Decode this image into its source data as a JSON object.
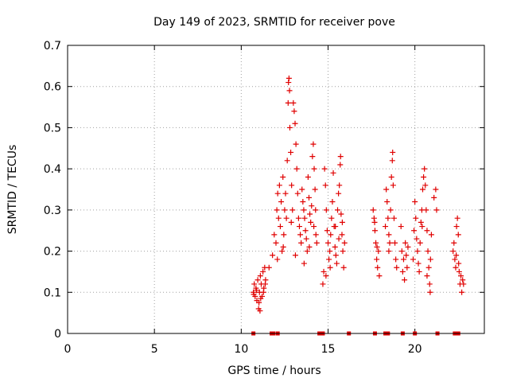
{
  "chart_data": {
    "type": "scatter",
    "title": "Day 149 of 2023, SRMTID for receiver pove",
    "xlabel": "GPS time / hours",
    "ylabel": "SRMTID / TECUs",
    "xlim": [
      0,
      24
    ],
    "ylim": [
      0,
      0.7
    ],
    "xticks": [
      0,
      5,
      10,
      15,
      20
    ],
    "yticks": [
      0,
      0.1,
      0.2,
      0.3,
      0.4,
      0.5,
      0.6,
      0.7
    ],
    "xtick_labels": [
      "0",
      "5",
      "10",
      "15",
      "20"
    ],
    "ytick_labels": [
      "0",
      "0.1",
      "0.2",
      "0.3",
      "0.4",
      "0.5",
      "0.6",
      "0.7"
    ],
    "grid": true,
    "marker": "plus",
    "color": "#e00000",
    "series": [
      {
        "points": [
          [
            10.7,
            0.1
          ],
          [
            10.75,
            0.12
          ],
          [
            10.8,
            0.09
          ],
          [
            10.85,
            0.11
          ],
          [
            10.9,
            0.08
          ],
          [
            10.95,
            0.13
          ],
          [
            11.0,
            0.06
          ],
          [
            11.05,
            0.1
          ],
          [
            11.1,
            0.14
          ],
          [
            11.15,
            0.12
          ],
          [
            11.2,
            0.09
          ],
          [
            11.25,
            0.15
          ],
          [
            11.3,
            0.11
          ],
          [
            11.35,
            0.16
          ],
          [
            11.4,
            0.13
          ],
          [
            10.72,
            0.095
          ],
          [
            10.88,
            0.105
          ],
          [
            11.02,
            0.075
          ],
          [
            11.12,
            0.085
          ],
          [
            11.28,
            0.1
          ],
          [
            11.38,
            0.12
          ],
          [
            11.08,
            0.055
          ],
          [
            11.6,
            0.16
          ],
          [
            11.8,
            0.19
          ],
          [
            11.9,
            0.24
          ],
          [
            12.0,
            0.22
          ],
          [
            12.05,
            0.3
          ],
          [
            12.1,
            0.34
          ],
          [
            12.15,
            0.28
          ],
          [
            12.2,
            0.36
          ],
          [
            12.25,
            0.26
          ],
          [
            12.3,
            0.32
          ],
          [
            12.35,
            0.2
          ],
          [
            12.4,
            0.38
          ],
          [
            12.45,
            0.24
          ],
          [
            12.5,
            0.3
          ],
          [
            12.55,
            0.34
          ],
          [
            12.6,
            0.28
          ],
          [
            12.65,
            0.42
          ],
          [
            12.7,
            0.56
          ],
          [
            12.72,
            0.61
          ],
          [
            12.75,
            0.62
          ],
          [
            12.78,
            0.59
          ],
          [
            12.8,
            0.5
          ],
          [
            12.85,
            0.44
          ],
          [
            12.9,
            0.36
          ],
          [
            12.95,
            0.3
          ],
          [
            13.0,
            0.56
          ],
          [
            13.05,
            0.54
          ],
          [
            13.1,
            0.51
          ],
          [
            13.15,
            0.46
          ],
          [
            13.2,
            0.4
          ],
          [
            13.25,
            0.34
          ],
          [
            13.3,
            0.28
          ],
          [
            13.35,
            0.26
          ],
          [
            13.4,
            0.24
          ],
          [
            13.45,
            0.22
          ],
          [
            13.5,
            0.35
          ],
          [
            13.55,
            0.32
          ],
          [
            13.6,
            0.3
          ],
          [
            13.65,
            0.28
          ],
          [
            13.7,
            0.25
          ],
          [
            13.75,
            0.23
          ],
          [
            13.8,
            0.2
          ],
          [
            13.85,
            0.38
          ],
          [
            13.9,
            0.33
          ],
          [
            13.95,
            0.29
          ],
          [
            14.0,
            0.27
          ],
          [
            14.05,
            0.31
          ],
          [
            14.1,
            0.43
          ],
          [
            14.15,
            0.46
          ],
          [
            14.2,
            0.4
          ],
          [
            14.25,
            0.35
          ],
          [
            14.3,
            0.24
          ],
          [
            14.35,
            0.22
          ],
          [
            12.08,
            0.18
          ],
          [
            12.42,
            0.21
          ],
          [
            12.88,
            0.27
          ],
          [
            13.12,
            0.19
          ],
          [
            13.62,
            0.17
          ],
          [
            13.92,
            0.21
          ],
          [
            14.18,
            0.26
          ],
          [
            14.28,
            0.3
          ],
          [
            14.7,
            0.12
          ],
          [
            14.75,
            0.15
          ],
          [
            14.8,
            0.4
          ],
          [
            14.85,
            0.36
          ],
          [
            14.9,
            0.3
          ],
          [
            14.95,
            0.25
          ],
          [
            15.0,
            0.22
          ],
          [
            15.05,
            0.18
          ],
          [
            15.1,
            0.2
          ],
          [
            15.15,
            0.24
          ],
          [
            15.2,
            0.28
          ],
          [
            15.25,
            0.32
          ],
          [
            15.3,
            0.39
          ],
          [
            15.35,
            0.26
          ],
          [
            15.4,
            0.21
          ],
          [
            15.45,
            0.19
          ],
          [
            15.5,
            0.17
          ],
          [
            15.55,
            0.3
          ],
          [
            15.6,
            0.34
          ],
          [
            15.65,
            0.36
          ],
          [
            15.7,
            0.41
          ],
          [
            15.72,
            0.43
          ],
          [
            15.75,
            0.29
          ],
          [
            15.8,
            0.24
          ],
          [
            15.85,
            0.2
          ],
          [
            15.9,
            0.16
          ],
          [
            15.95,
            0.22
          ],
          [
            14.88,
            0.14
          ],
          [
            15.12,
            0.16
          ],
          [
            15.42,
            0.26
          ],
          [
            15.62,
            0.23
          ],
          [
            15.82,
            0.27
          ],
          [
            17.6,
            0.3
          ],
          [
            17.65,
            0.28
          ],
          [
            17.7,
            0.25
          ],
          [
            17.75,
            0.22
          ],
          [
            17.8,
            0.18
          ],
          [
            17.85,
            0.16
          ],
          [
            17.9,
            0.2
          ],
          [
            17.95,
            0.14
          ],
          [
            17.68,
            0.27
          ],
          [
            17.82,
            0.21
          ],
          [
            18.3,
            0.26
          ],
          [
            18.35,
            0.35
          ],
          [
            18.4,
            0.32
          ],
          [
            18.45,
            0.28
          ],
          [
            18.5,
            0.24
          ],
          [
            18.55,
            0.22
          ],
          [
            18.6,
            0.3
          ],
          [
            18.65,
            0.38
          ],
          [
            18.7,
            0.42
          ],
          [
            18.72,
            0.44
          ],
          [
            18.75,
            0.36
          ],
          [
            18.8,
            0.28
          ],
          [
            18.85,
            0.22
          ],
          [
            18.9,
            0.18
          ],
          [
            18.95,
            0.16
          ],
          [
            18.5,
            0.2
          ],
          [
            19.2,
            0.26
          ],
          [
            19.25,
            0.2
          ],
          [
            19.3,
            0.15
          ],
          [
            19.35,
            0.18
          ],
          [
            19.4,
            0.13
          ],
          [
            19.45,
            0.22
          ],
          [
            19.5,
            0.19
          ],
          [
            19.55,
            0.16
          ],
          [
            19.6,
            0.21
          ],
          [
            19.9,
            0.18
          ],
          [
            19.95,
            0.25
          ],
          [
            20.0,
            0.32
          ],
          [
            20.05,
            0.28
          ],
          [
            20.1,
            0.23
          ],
          [
            20.15,
            0.2
          ],
          [
            20.2,
            0.17
          ],
          [
            20.25,
            0.15
          ],
          [
            20.3,
            0.22
          ],
          [
            20.35,
            0.27
          ],
          [
            20.4,
            0.3
          ],
          [
            20.45,
            0.35
          ],
          [
            20.5,
            0.38
          ],
          [
            20.55,
            0.4
          ],
          [
            20.6,
            0.36
          ],
          [
            20.65,
            0.3
          ],
          [
            20.7,
            0.25
          ],
          [
            20.75,
            0.2
          ],
          [
            20.8,
            0.16
          ],
          [
            20.85,
            0.12
          ],
          [
            20.88,
            0.1
          ],
          [
            20.9,
            0.18
          ],
          [
            20.95,
            0.24
          ],
          [
            21.1,
            0.33
          ],
          [
            21.2,
            0.35
          ],
          [
            21.25,
            0.3
          ],
          [
            20.7,
            0.14
          ],
          [
            20.42,
            0.26
          ],
          [
            22.2,
            0.2
          ],
          [
            22.25,
            0.22
          ],
          [
            22.3,
            0.18
          ],
          [
            22.35,
            0.16
          ],
          [
            22.4,
            0.26
          ],
          [
            22.45,
            0.28
          ],
          [
            22.5,
            0.24
          ],
          [
            22.55,
            0.15
          ],
          [
            22.6,
            0.12
          ],
          [
            22.65,
            0.14
          ],
          [
            22.7,
            0.1
          ],
          [
            22.75,
            0.13
          ],
          [
            22.8,
            0.12
          ],
          [
            22.38,
            0.19
          ],
          [
            22.52,
            0.17
          ]
        ]
      }
    ],
    "baseline_markers_x": [
      10.7,
      11.75,
      11.85,
      12.1,
      14.5,
      14.6,
      14.7,
      16.2,
      17.7,
      18.3,
      18.45,
      19.3,
      20.0,
      21.3,
      22.3,
      22.5
    ]
  }
}
